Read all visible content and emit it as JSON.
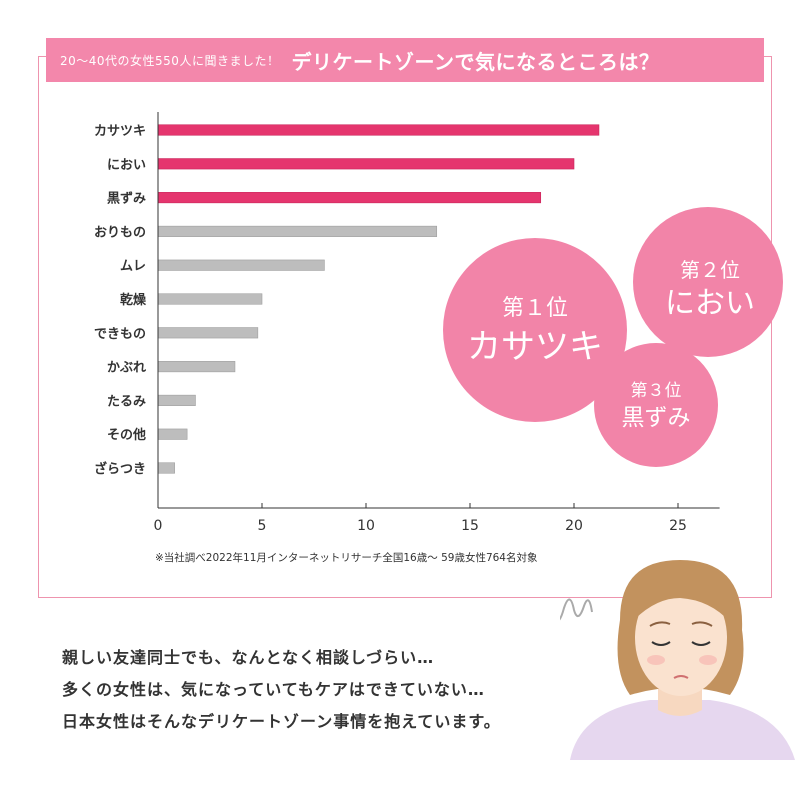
{
  "banner": {
    "subtitle": "20〜40代の女性550人に聞きました！",
    "title": "デリケートゾーンで気になるところは？"
  },
  "chart_data": {
    "type": "bar",
    "orientation": "horizontal",
    "categories": [
      "カサツキ",
      "におい",
      "黒ずみ",
      "おりもの",
      "ムレ",
      "乾燥",
      "できもの",
      "かぶれ",
      "たるみ",
      "その他",
      "ざらつき"
    ],
    "values": [
      21.2,
      20.0,
      18.4,
      13.4,
      8.0,
      5.0,
      4.8,
      3.7,
      1.8,
      1.4,
      0.8
    ],
    "highlight_top": 3,
    "xlim": [
      0,
      27
    ],
    "xticks": [
      0,
      5,
      10,
      15,
      20,
      25
    ],
    "xtick_labels": [
      "0",
      "5",
      "10",
      "15",
      "20",
      "25"
    ],
    "grid": false,
    "colors": {
      "highlight": "#e5356e",
      "normal": "#bdbdbd"
    }
  },
  "note": "※当社調べ2022年11月インターネットリサーチ全国16歳〜 59歳女性764名対象",
  "rankings": [
    {
      "rank": "第１位",
      "item": "カサツキ"
    },
    {
      "rank": "第２位",
      "item": "におい"
    },
    {
      "rank": "第３位",
      "item": "黒ずみ"
    }
  ],
  "speech": [
    "親しい友達同士でも、なんとなく相談しづらい…",
    "多くの女性は、気になっていてもケアはできていない…",
    "日本女性はそんなデリケートゾーン事情を抱えています。"
  ],
  "colors": {
    "frame": "#ee94ae",
    "banner": "#f387ab",
    "circle": "#f284a8"
  }
}
